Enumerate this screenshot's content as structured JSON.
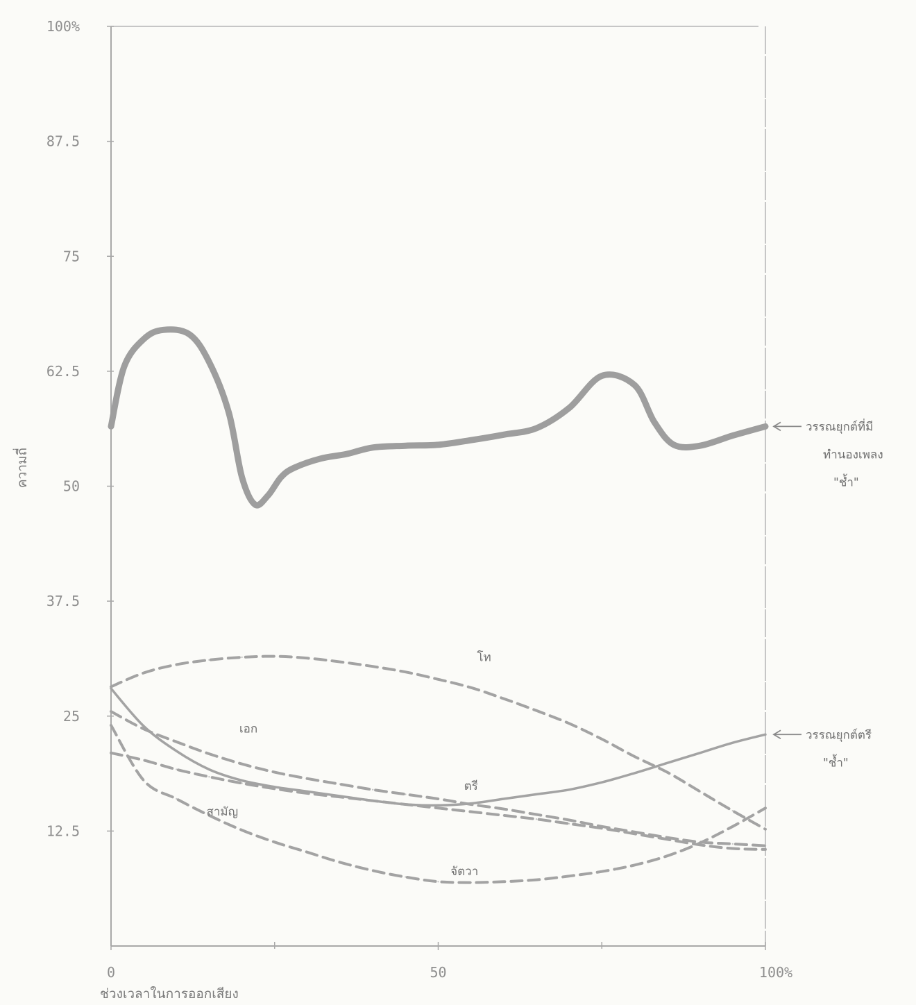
{
  "chart_data": {
    "type": "line",
    "title": "",
    "xlabel": "ช่วงเวลาในการออกเสียง",
    "ylabel": "ความถี่",
    "xlim": [
      0,
      100
    ],
    "ylim": [
      0,
      100
    ],
    "x_ticks": [
      "0",
      "50",
      "100%"
    ],
    "y_ticks": [
      "12.5",
      "25",
      "37.5",
      "50",
      "62.5",
      "75",
      "87.5",
      "100%"
    ],
    "y_tick_values": [
      12.5,
      25,
      37.5,
      50,
      62.5,
      75,
      87.5,
      100
    ],
    "x_tick_values": [
      0,
      50,
      100
    ],
    "grid": false,
    "colors": {
      "thick": "#9e9e9e",
      "thin": "#a3a3a3",
      "text": "#8e8e8e"
    },
    "series": [
      {
        "name": "โท",
        "style": "dashed",
        "x": [
          0,
          5,
          10,
          15,
          20,
          25,
          30,
          35,
          40,
          45,
          50,
          55,
          60,
          65,
          70,
          75,
          80,
          85,
          90,
          95,
          100
        ],
        "y": [
          28.2,
          29.7,
          30.6,
          31.1,
          31.4,
          31.5,
          31.3,
          30.9,
          30.4,
          29.8,
          29.0,
          28.1,
          26.9,
          25.6,
          24.2,
          22.5,
          20.6,
          18.9,
          16.8,
          14.7,
          12.7
        ]
      },
      {
        "name": "เอก",
        "style": "dashed",
        "x": [
          0,
          5,
          10,
          15,
          20,
          25,
          30,
          35,
          40,
          45,
          50,
          55,
          60,
          65,
          70,
          75,
          80,
          85,
          90,
          95,
          100
        ],
        "y": [
          25.5,
          23.6,
          22.2,
          20.9,
          19.8,
          18.9,
          18.2,
          17.6,
          17.0,
          16.5,
          16.0,
          15.4,
          14.9,
          14.3,
          13.7,
          13.0,
          12.4,
          11.8,
          11.3,
          11.1,
          10.9
        ]
      },
      {
        "name": "ตรี",
        "style": "solid-thin",
        "x": [
          0,
          5,
          10,
          15,
          20,
          25,
          30,
          35,
          40,
          45,
          50,
          55,
          60,
          65,
          70,
          75,
          80,
          85,
          90,
          95,
          100
        ],
        "y": [
          28.0,
          23.9,
          21.2,
          19.2,
          18.0,
          17.3,
          16.8,
          16.3,
          15.8,
          15.4,
          15.3,
          15.5,
          16.0,
          16.5,
          17.0,
          17.8,
          18.8,
          19.9,
          21.0,
          22.1,
          23.0
        ]
      },
      {
        "name": "สามัญ",
        "style": "dashed",
        "x": [
          0,
          5,
          10,
          15,
          20,
          25,
          30,
          35,
          40,
          45,
          50,
          55,
          60,
          65,
          70,
          75,
          80,
          85,
          90,
          95,
          100
        ],
        "y": [
          21.0,
          20.2,
          19.2,
          18.4,
          17.7,
          17.1,
          16.6,
          16.2,
          15.8,
          15.4,
          15.0,
          14.6,
          14.2,
          13.8,
          13.3,
          12.8,
          12.2,
          11.6,
          11.0,
          10.6,
          10.5
        ]
      },
      {
        "name": "จัตวา",
        "style": "dashed",
        "x": [
          0,
          5,
          10,
          15,
          20,
          25,
          30,
          35,
          40,
          45,
          50,
          55,
          60,
          65,
          70,
          75,
          80,
          85,
          90,
          95,
          100
        ],
        "y": [
          24.0,
          18.0,
          16.0,
          14.2,
          12.6,
          11.3,
          10.2,
          9.1,
          8.2,
          7.5,
          7.0,
          6.9,
          7.0,
          7.2,
          7.6,
          8.1,
          8.8,
          9.8,
          11.2,
          13.0,
          15.0
        ]
      },
      {
        "name": "วรรณยุกต์ที่มีทำนองเพลง \"ช้ำ\"",
        "style": "solid-thick",
        "x": [
          0,
          2,
          5,
          8,
          12,
          15,
          18,
          20,
          22,
          24,
          26,
          28,
          32,
          36,
          40,
          45,
          50,
          55,
          60,
          65,
          70,
          75,
          80,
          83,
          86,
          90,
          95,
          100
        ],
        "y": [
          56.5,
          63.0,
          66.0,
          67.0,
          66.5,
          63.5,
          58.0,
          51.0,
          48.0,
          49.0,
          51.0,
          52.0,
          53.0,
          53.5,
          54.2,
          54.4,
          54.5,
          55.0,
          55.6,
          56.3,
          58.5,
          62.0,
          61.0,
          57.0,
          54.5,
          54.4,
          55.5,
          56.5
        ]
      }
    ],
    "annotations": [
      {
        "text": "โท",
        "x": 57,
        "y": 31.0,
        "series": "โท"
      },
      {
        "text": "เอก",
        "x": 21,
        "y": 23.2,
        "series": "เอก"
      },
      {
        "text": "ตรี",
        "x": 55,
        "y": 17.0,
        "series": "ตรี"
      },
      {
        "text": "สามัญ",
        "x": 17,
        "y": 14.2,
        "series": "สามัญ"
      },
      {
        "text": "จัตวา",
        "x": 54,
        "y": 7.7,
        "series": "จัตวา"
      }
    ],
    "side_labels": [
      {
        "lines": [
          "วรรณยุกต์ที่มี",
          "ทำนองเพลง",
          "\"ช้ำ\""
        ],
        "target_y": 56.5
      },
      {
        "lines": [
          "วรรณยุกต์ตรี",
          "\"ช้ำ\""
        ],
        "target_y": 23.0
      }
    ]
  }
}
